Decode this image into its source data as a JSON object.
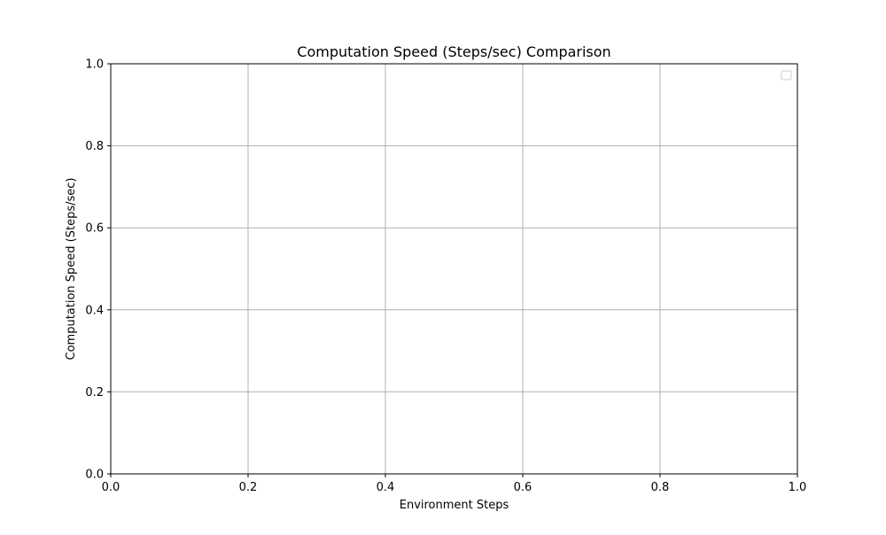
{
  "chart_data": {
    "type": "line",
    "title": "Computation Speed (Steps/sec) Comparison",
    "xlabel": "Environment Steps",
    "ylabel": "Computation Speed (Steps/sec)",
    "xlim": [
      0.0,
      1.0
    ],
    "ylim": [
      0.0,
      1.0
    ],
    "x_ticks": [
      "0.0",
      "0.2",
      "0.4",
      "0.6",
      "0.8",
      "1.0"
    ],
    "y_ticks": [
      "0.0",
      "0.2",
      "0.4",
      "0.6",
      "0.8",
      "1.0"
    ],
    "x_tick_values": [
      0.0,
      0.2,
      0.4,
      0.6,
      0.8,
      1.0
    ],
    "y_tick_values": [
      0.0,
      0.2,
      0.4,
      0.6,
      0.8,
      1.0
    ],
    "grid": true,
    "legend": {
      "placement": "top-right",
      "entries": []
    },
    "series": []
  },
  "colors": {
    "grid": "#b0b0b0",
    "axis": "#000000",
    "legend_border": "#cccccc",
    "background": "#ffffff"
  }
}
